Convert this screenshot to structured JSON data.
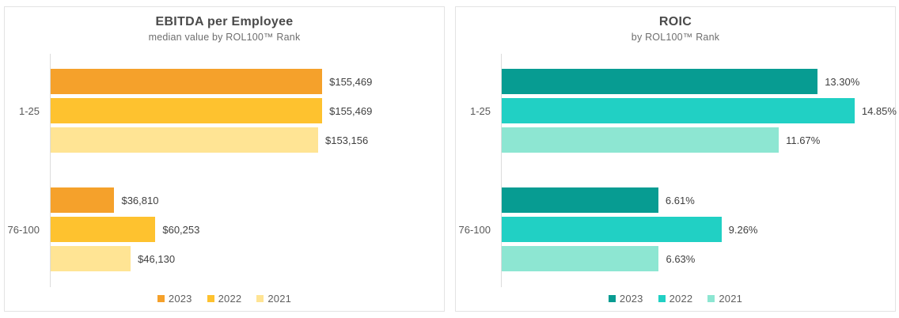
{
  "chart_data": [
    {
      "type": "bar",
      "orientation": "horizontal",
      "title": "EBITDA per Employee",
      "subtitle": "median value by ROL100™ Rank",
      "categories": [
        "1-25",
        "76-100"
      ],
      "series": [
        {
          "name": "2023",
          "color": "#f5a12b",
          "values": [
            155469,
            36810
          ],
          "labels": [
            "$155,469",
            "$36,810"
          ]
        },
        {
          "name": "2022",
          "color": "#fec22f",
          "values": [
            155469,
            60253
          ],
          "labels": [
            "$155,469",
            "$60,253"
          ]
        },
        {
          "name": "2021",
          "color": "#ffe494",
          "values": [
            153156,
            46130
          ],
          "labels": [
            "$153,156",
            "$46,130"
          ]
        }
      ],
      "xlim": [
        0,
        225000
      ],
      "grid": false,
      "legend_position": "bottom"
    },
    {
      "type": "bar",
      "orientation": "horizontal",
      "title": "ROIC",
      "subtitle": "by ROL100™ Rank",
      "categories": [
        "1-25",
        "76-100"
      ],
      "series": [
        {
          "name": "2023",
          "color": "#079c92",
          "values": [
            13.3,
            6.61
          ],
          "labels": [
            "13.30%",
            "6.61%"
          ]
        },
        {
          "name": "2022",
          "color": "#21d0c4",
          "values": [
            14.85,
            9.26
          ],
          "labels": [
            "14.85%",
            "9.26%"
          ]
        },
        {
          "name": "2021",
          "color": "#8de6d2",
          "values": [
            11.67,
            6.63
          ],
          "labels": [
            "11.67%",
            "6.63%"
          ]
        }
      ],
      "xlim": [
        0,
        16.55
      ],
      "grid": false,
      "legend_position": "bottom"
    }
  ]
}
